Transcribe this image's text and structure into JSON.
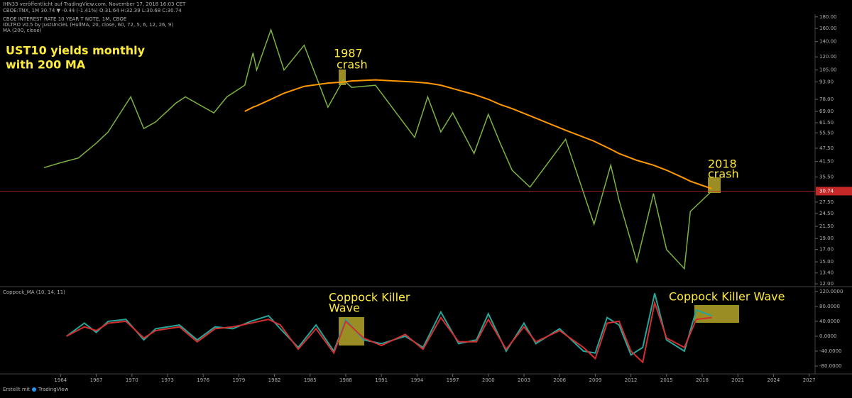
{
  "header": {
    "published": "IHN33 veröffentlicht auf TradingView.com, November 17, 2018 16:03 CET",
    "quote": "CBOE:TNX, 1M 30.74 ▼ -0.44 (-1.41%) O:31.64 H:32.39 L:30.68 C:30.74",
    "indicators": [
      "CBOE INTEREST RATE 10 YEAR T NOTE, 1M, CBOE",
      "IDLTRO v0.5 by JustUncleL (HullMA, 20, close, 60, 72, 5, 6, 12, 26, 9)",
      "MA (200, close)"
    ]
  },
  "chart_data": [
    {
      "type": "line",
      "log_scale": true,
      "grid": false,
      "annotations": [
        "UST10 yields monthly",
        "with 200 MA",
        "1987",
        "crash",
        "2018",
        "crash"
      ],
      "x": [
        1962.6,
        1964,
        1965.5,
        1967,
        1968,
        1969.9,
        1971,
        1972,
        1973.7,
        1974.5,
        1976.9,
        1978,
        1979.5,
        1980.2,
        1980.5,
        1981.7,
        1982.8,
        1984.5,
        1986.5,
        1987.8,
        1988.5,
        1990.5,
        1993.8,
        1994.9,
        1996,
        1997,
        1998.8,
        2000,
        2001,
        2002,
        2003.5,
        2006.5,
        2008.9,
        2010.3,
        2011,
        2012.5,
        2013.9,
        2015,
        2016.5,
        2017,
        2018.8
      ],
      "series": [
        {
          "color": "#7cb342",
          "values": [
            39,
            41,
            43,
            50,
            56,
            80,
            58,
            62,
            75,
            80,
            68,
            80,
            90,
            125,
            105,
            158,
            105,
            135,
            72,
            95,
            88,
            90,
            53,
            80,
            56,
            68,
            45,
            67,
            50,
            38,
            32,
            52,
            22,
            40,
            28,
            15,
            30,
            17,
            14,
            25,
            30.74
          ]
        },
        {
          "color": "#ff9800",
          "values": [
            null,
            null,
            null,
            null,
            null,
            null,
            null,
            null,
            null,
            null,
            null,
            null,
            69,
            72,
            73,
            78,
            83,
            89,
            92,
            93,
            94,
            95,
            93,
            92,
            90,
            87,
            82,
            78,
            74,
            71,
            66,
            57,
            51,
            47,
            45,
            42,
            40,
            38,
            35,
            34,
            31.5
          ]
        }
      ],
      "last_value": 30.74,
      "last_color": "#c62828",
      "xlim": [
        1958.9,
        2027.5
      ],
      "ylim": [
        11.75,
        185
      ],
      "yticks": [
        {
          "value": 180,
          "label": "180.00"
        },
        {
          "value": 160,
          "label": "160.00"
        },
        {
          "value": 140,
          "label": "140.00"
        },
        {
          "value": 120,
          "label": "120.00"
        },
        {
          "value": 105,
          "label": "105.00"
        },
        {
          "value": 93,
          "label": "93.00"
        },
        {
          "value": 78,
          "label": "78.00"
        },
        {
          "value": 69,
          "label": "69.00"
        },
        {
          "value": 61.5,
          "label": "61.50"
        },
        {
          "value": 55.5,
          "label": "55.50"
        },
        {
          "value": 47.5,
          "label": "47.50"
        },
        {
          "value": 41.5,
          "label": "41.50"
        },
        {
          "value": 35.5,
          "label": "35.50"
        },
        {
          "value": 27.5,
          "label": "27.50"
        },
        {
          "value": 24.5,
          "label": "24.50"
        },
        {
          "value": 21.5,
          "label": "21.50"
        },
        {
          "value": 19,
          "label": "19.00"
        },
        {
          "value": 17,
          "label": "17.00"
        },
        {
          "value": 15,
          "label": "15.00"
        },
        {
          "value": 13.4,
          "label": "13.40"
        },
        {
          "value": 12,
          "label": "12.00"
        }
      ]
    },
    {
      "type": "line",
      "title": "Coppock_MA (10, 14, 11)",
      "grid": false,
      "annotations": [
        "Coppock Killer",
        "Wave",
        "Coppock Killer Wave"
      ],
      "x": [
        1964.5,
        1966,
        1967,
        1968,
        1969.5,
        1971,
        1972,
        1974,
        1975.5,
        1977,
        1978.5,
        1980,
        1981.5,
        1982.5,
        1984,
        1985.5,
        1987,
        1988,
        1989.5,
        1991,
        1993,
        1994.5,
        1996,
        1997.5,
        1999,
        2000,
        2001.5,
        2003,
        2004,
        2006,
        2008,
        2009,
        2010,
        2011,
        2012,
        2013,
        2014,
        2015,
        2016.5,
        2017.5,
        2018.8
      ],
      "series": [
        {
          "color": "#26a69a",
          "values": [
            0,
            35,
            10,
            40,
            45,
            -10,
            20,
            30,
            -10,
            25,
            20,
            40,
            55,
            20,
            -30,
            30,
            -40,
            45,
            -10,
            -20,
            0,
            -30,
            65,
            -20,
            -10,
            60,
            -40,
            35,
            -20,
            20,
            -40,
            -45,
            50,
            30,
            -50,
            -30,
            115,
            -10,
            -40,
            70,
            55
          ]
        },
        {
          "color": "#d32f2f",
          "values": [
            0,
            25,
            15,
            35,
            40,
            -5,
            15,
            25,
            -15,
            20,
            25,
            35,
            45,
            30,
            -35,
            20,
            -45,
            40,
            -5,
            -25,
            5,
            -35,
            50,
            -15,
            -15,
            45,
            -35,
            25,
            -15,
            15,
            -30,
            -60,
            35,
            40,
            -40,
            -70,
            90,
            -5,
            -30,
            45,
            50
          ]
        }
      ],
      "xlim": [
        1958.9,
        2027.5
      ],
      "ylim": [
        -101,
        131
      ],
      "yticks": [
        {
          "value": 120,
          "label": "120.0000"
        },
        {
          "value": 80,
          "label": "80.0000"
        },
        {
          "value": 40,
          "label": "40.0000"
        },
        {
          "value": 0,
          "label": "0.0000"
        },
        {
          "value": -40,
          "label": "-40.0000"
        },
        {
          "value": -80,
          "label": "-80.0000"
        }
      ],
      "xticks": [
        1964,
        1967,
        1970,
        1973,
        1976,
        1979,
        1982,
        1985,
        1988,
        1991,
        1994,
        1997,
        2000,
        2003,
        2006,
        2009,
        2012,
        2015,
        2018,
        2021,
        2024,
        2027
      ]
    }
  ],
  "footer": {
    "created_with": "Erstellt mit",
    "brand": "TradingView"
  }
}
